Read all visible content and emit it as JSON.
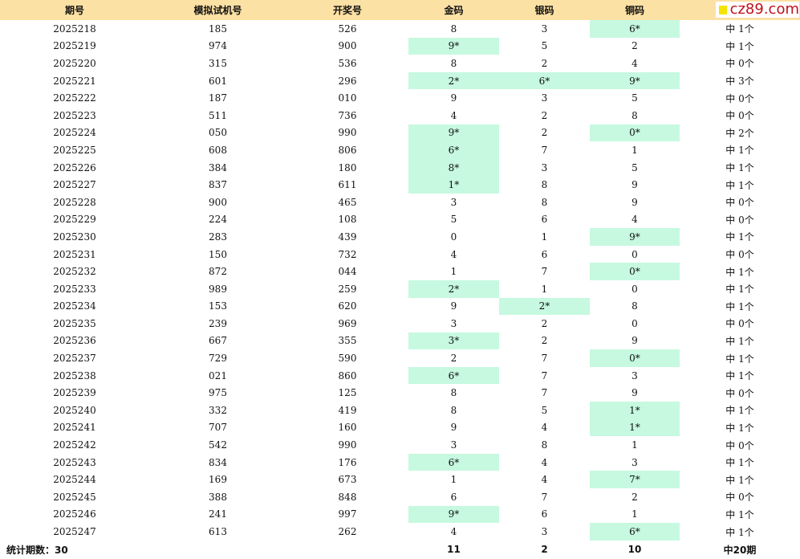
{
  "headers": [
    "期号",
    "模拟试机号",
    "开奖号",
    "金码",
    "银码",
    "铜码",
    ""
  ],
  "logo": {
    "text": "cz89.com",
    "mark_color": "#f5e400",
    "text_color": "#c0101c"
  },
  "colors": {
    "header_bg": "#fce1a4",
    "hit_bg": "#c6f9e0"
  },
  "rows": [
    {
      "issue": "2025218",
      "sim": "185",
      "draw": "526",
      "gold": "8",
      "silver": "3",
      "copper": "6*",
      "result": "中 1个"
    },
    {
      "issue": "2025219",
      "sim": "974",
      "draw": "900",
      "gold": "9*",
      "silver": "5",
      "copper": "2",
      "result": "中 1个"
    },
    {
      "issue": "2025220",
      "sim": "315",
      "draw": "536",
      "gold": "8",
      "silver": "2",
      "copper": "4",
      "result": "中 0个"
    },
    {
      "issue": "2025221",
      "sim": "601",
      "draw": "296",
      "gold": "2*",
      "silver": "6*",
      "copper": "9*",
      "result": "中 3个"
    },
    {
      "issue": "2025222",
      "sim": "187",
      "draw": "010",
      "gold": "9",
      "silver": "3",
      "copper": "5",
      "result": "中 0个"
    },
    {
      "issue": "2025223",
      "sim": "511",
      "draw": "736",
      "gold": "4",
      "silver": "2",
      "copper": "8",
      "result": "中 0个"
    },
    {
      "issue": "2025224",
      "sim": "050",
      "draw": "990",
      "gold": "9*",
      "silver": "2",
      "copper": "0*",
      "result": "中 2个"
    },
    {
      "issue": "2025225",
      "sim": "608",
      "draw": "806",
      "gold": "6*",
      "silver": "7",
      "copper": "1",
      "result": "中 1个"
    },
    {
      "issue": "2025226",
      "sim": "384",
      "draw": "180",
      "gold": "8*",
      "silver": "3",
      "copper": "5",
      "result": "中 1个"
    },
    {
      "issue": "2025227",
      "sim": "837",
      "draw": "611",
      "gold": "1*",
      "silver": "8",
      "copper": "9",
      "result": "中 1个"
    },
    {
      "issue": "2025228",
      "sim": "900",
      "draw": "465",
      "gold": "3",
      "silver": "8",
      "copper": "9",
      "result": "中 0个"
    },
    {
      "issue": "2025229",
      "sim": "224",
      "draw": "108",
      "gold": "5",
      "silver": "6",
      "copper": "4",
      "result": "中 0个"
    },
    {
      "issue": "2025230",
      "sim": "283",
      "draw": "439",
      "gold": "0",
      "silver": "1",
      "copper": "9*",
      "result": "中 1个"
    },
    {
      "issue": "2025231",
      "sim": "150",
      "draw": "732",
      "gold": "4",
      "silver": "6",
      "copper": "0",
      "result": "中 0个"
    },
    {
      "issue": "2025232",
      "sim": "872",
      "draw": "044",
      "gold": "1",
      "silver": "7",
      "copper": "0*",
      "result": "中 1个"
    },
    {
      "issue": "2025233",
      "sim": "989",
      "draw": "259",
      "gold": "2*",
      "silver": "1",
      "copper": "0",
      "result": "中 1个"
    },
    {
      "issue": "2025234",
      "sim": "153",
      "draw": "620",
      "gold": "9",
      "silver": "2*",
      "copper": "8",
      "result": "中 1个"
    },
    {
      "issue": "2025235",
      "sim": "239",
      "draw": "969",
      "gold": "3",
      "silver": "2",
      "copper": "0",
      "result": "中 0个"
    },
    {
      "issue": "2025236",
      "sim": "667",
      "draw": "355",
      "gold": "3*",
      "silver": "2",
      "copper": "9",
      "result": "中 1个"
    },
    {
      "issue": "2025237",
      "sim": "729",
      "draw": "590",
      "gold": "2",
      "silver": "7",
      "copper": "0*",
      "result": "中 1个"
    },
    {
      "issue": "2025238",
      "sim": "021",
      "draw": "860",
      "gold": "6*",
      "silver": "7",
      "copper": "3",
      "result": "中 1个"
    },
    {
      "issue": "2025239",
      "sim": "975",
      "draw": "125",
      "gold": "8",
      "silver": "7",
      "copper": "9",
      "result": "中 0个"
    },
    {
      "issue": "2025240",
      "sim": "332",
      "draw": "419",
      "gold": "8",
      "silver": "5",
      "copper": "1*",
      "result": "中 1个"
    },
    {
      "issue": "2025241",
      "sim": "707",
      "draw": "160",
      "gold": "9",
      "silver": "4",
      "copper": "1*",
      "result": "中 1个"
    },
    {
      "issue": "2025242",
      "sim": "542",
      "draw": "990",
      "gold": "3",
      "silver": "8",
      "copper": "1",
      "result": "中 0个"
    },
    {
      "issue": "2025243",
      "sim": "834",
      "draw": "176",
      "gold": "6*",
      "silver": "4",
      "copper": "3",
      "result": "中 1个"
    },
    {
      "issue": "2025244",
      "sim": "169",
      "draw": "673",
      "gold": "1",
      "silver": "4",
      "copper": "7*",
      "result": "中 1个"
    },
    {
      "issue": "2025245",
      "sim": "388",
      "draw": "848",
      "gold": "6",
      "silver": "7",
      "copper": "2",
      "result": "中 0个"
    },
    {
      "issue": "2025246",
      "sim": "241",
      "draw": "997",
      "gold": "9*",
      "silver": "6",
      "copper": "1",
      "result": "中 1个"
    },
    {
      "issue": "2025247",
      "sim": "613",
      "draw": "262",
      "gold": "4",
      "silver": "3",
      "copper": "6*",
      "result": "中 1个"
    }
  ],
  "footer": {
    "label": "统计期数：30",
    "gold": "11",
    "silver": "2",
    "copper": "10",
    "result": "中20期"
  }
}
